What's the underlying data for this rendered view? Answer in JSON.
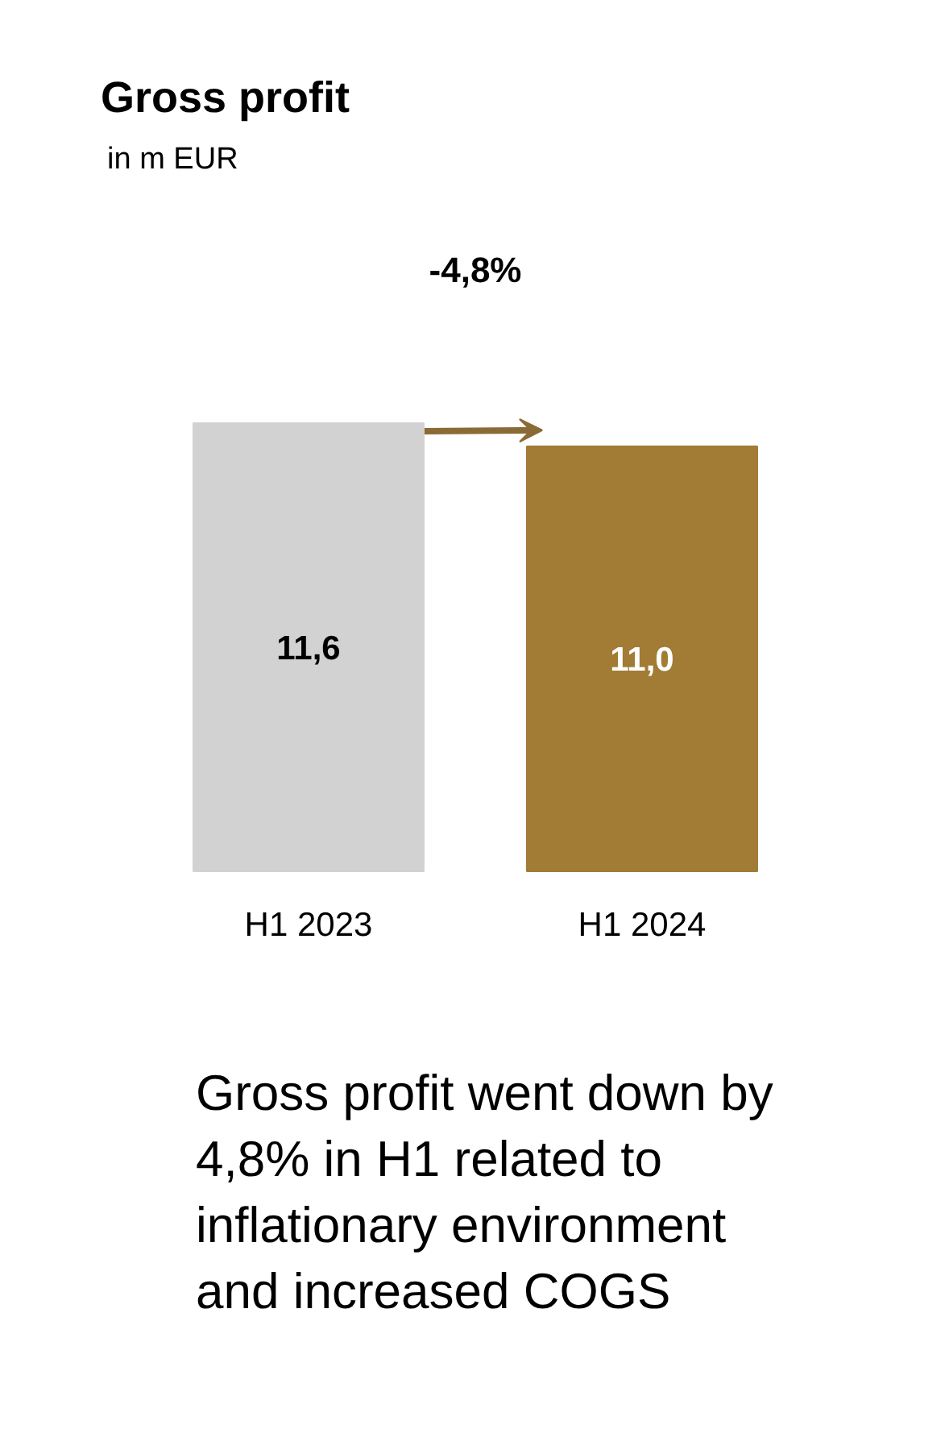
{
  "chart_data": {
    "type": "bar",
    "title": "Gross profit",
    "subtitle": "in m EUR",
    "categories": [
      "H1 2023",
      "H1 2024"
    ],
    "values": [
      11.6,
      11.0
    ],
    "colors": [
      "#d2d2d2",
      "#a27b34"
    ],
    "value_labels": [
      "11,6",
      "11,0"
    ],
    "annotations": [
      "-4,8%",
      "Gross profit went down by 4,8% in H1 related to inflationary environment and increased COGS"
    ]
  }
}
